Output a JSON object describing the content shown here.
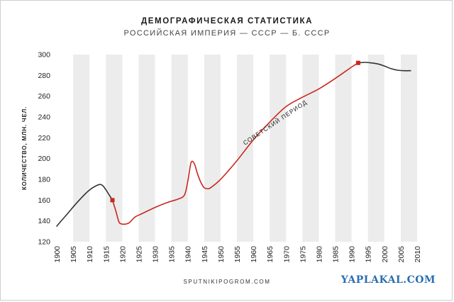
{
  "header": {
    "title": "ДЕМОГРАФИЧЕСКАЯ СТАТИСТИКА",
    "subtitle": "РОССИЙСКАЯ ИМПЕРИЯ — СССР — Б. СССР"
  },
  "footer": {
    "source": "SPUTNIKIPOGROM.COM",
    "watermark": "YAPLAKAL.COM"
  },
  "chart_data": {
    "type": "line",
    "ylabel": "КОЛИЧЕСТВО, МЛН. ЧЕЛ.",
    "xlabel": "",
    "xlim": [
      1900,
      2010
    ],
    "ylim": [
      120,
      300
    ],
    "x_ticks": [
      1900,
      1905,
      1910,
      1915,
      1920,
      1925,
      1930,
      1935,
      1940,
      1945,
      1950,
      1955,
      1960,
      1965,
      1970,
      1975,
      1980,
      1985,
      1990,
      1995,
      2000,
      2005,
      2010
    ],
    "y_ticks": [
      120,
      140,
      160,
      180,
      200,
      220,
      240,
      260,
      280,
      300
    ],
    "grid": "alternating vertical bands",
    "colors": {
      "pre": "#333333",
      "soviet": "#c8281e",
      "band": "#ececec",
      "marker": "#c8281e"
    },
    "series": [
      {
        "segment": "pre",
        "x": [
          1900,
          1903,
          1906,
          1909,
          1911,
          1913,
          1914,
          1915,
          1916,
          1917
        ],
        "y": [
          135,
          146,
          157,
          167,
          172,
          175,
          174,
          170,
          165,
          160
        ]
      },
      {
        "segment": "soviet",
        "x": [
          1917,
          1918,
          1919,
          1920,
          1921,
          1922,
          1923,
          1924,
          1926,
          1930,
          1934,
          1937,
          1939,
          1940,
          1941,
          1942,
          1943,
          1944,
          1945,
          1946,
          1947,
          1950,
          1955,
          1960,
          1965,
          1970,
          1975,
          1980,
          1985,
          1990,
          1992
        ],
        "y": [
          160,
          150,
          139,
          137,
          137,
          138,
          141,
          144,
          147,
          153,
          158,
          161,
          165,
          178,
          196,
          195,
          185,
          177,
          172,
          171,
          172,
          180,
          198,
          218,
          235,
          250,
          259,
          267,
          277,
          288,
          292
        ]
      },
      {
        "segment": "post",
        "x": [
          1992,
          1994,
          1996,
          1998,
          2000,
          2002,
          2004,
          2006,
          2008
        ],
        "y": [
          292,
          292.5,
          292,
          291,
          289,
          286.5,
          285,
          284.5,
          284.5
        ]
      }
    ],
    "markers": [
      {
        "x": 1917,
        "y": 160
      },
      {
        "x": 1992,
        "y": 292
      }
    ],
    "annotations": [
      {
        "text": "СОВЕТСКИЙ ПЕРИОД",
        "x": 1967,
        "y": 233
      }
    ]
  }
}
